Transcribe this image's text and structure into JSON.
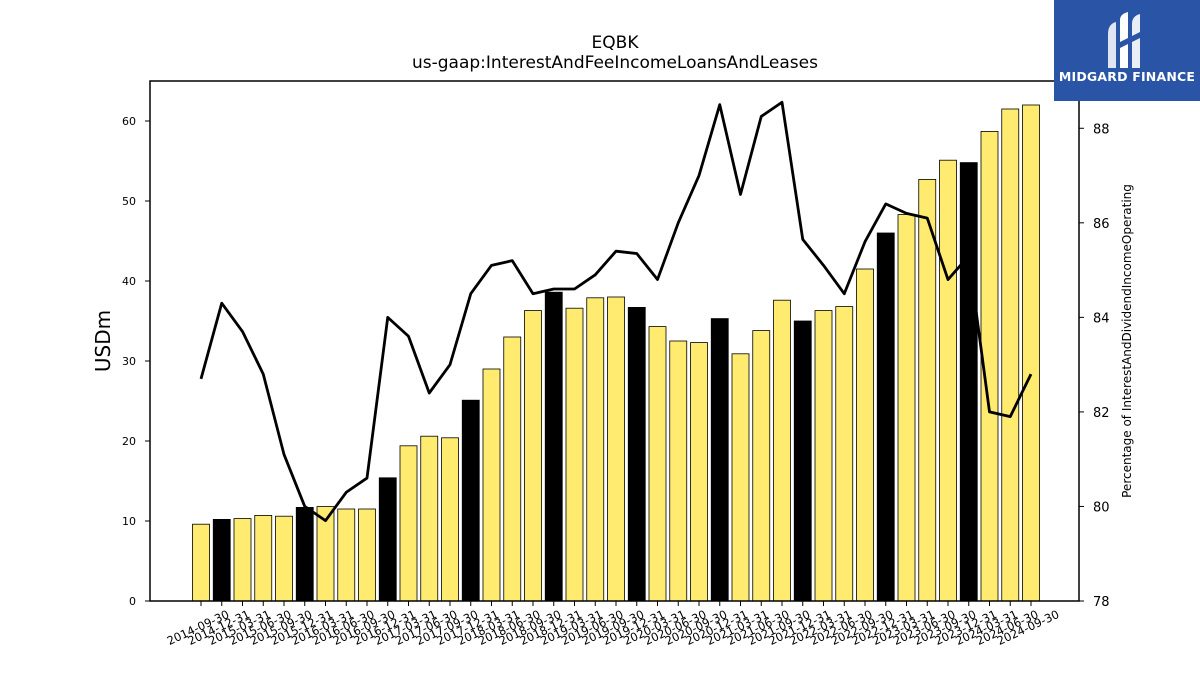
{
  "logo": {
    "text": "MIDGARD FINANCE",
    "background": "#2a55a6",
    "icon": "midgard-logo-icon"
  },
  "chart_data": {
    "type": "bar",
    "title": "EQBK",
    "subtitle": "us-gaap:InterestAndFeeIncomeLoansAndLeases",
    "ylabel": "USDm",
    "y2label": "Percentage of InterestAndDividendIncomeOperating",
    "ylim": [
      0,
      65
    ],
    "y2lim": [
      78,
      89
    ],
    "yticks": [
      0,
      10,
      20,
      30,
      40,
      50,
      60
    ],
    "y2ticks": [
      78,
      80,
      82,
      84,
      86,
      88
    ],
    "categories": [
      "2014-09-30",
      "2014-12-31",
      "2015-03-31",
      "2015-06-30",
      "2015-09-30",
      "2015-12-31",
      "2016-03-31",
      "2016-06-30",
      "2016-09-30",
      "2016-12-31",
      "2017-03-31",
      "2017-06-30",
      "2017-09-30",
      "2017-12-31",
      "2018-03-31",
      "2018-06-30",
      "2018-09-30",
      "2018-12-31",
      "2019-03-31",
      "2019-06-30",
      "2019-09-30",
      "2019-12-31",
      "2020-03-31",
      "2020-06-30",
      "2020-09-30",
      "2020-12-31",
      "2021-03-31",
      "2021-06-30",
      "2021-09-30",
      "2021-12-31",
      "2022-03-31",
      "2022-06-30",
      "2022-09-30",
      "2022-12-31",
      "2023-03-31",
      "2023-06-30",
      "2023-09-30",
      "2023-12-31",
      "2024-03-31",
      "2024-06-30",
      "2024-09-30"
    ],
    "series": [
      {
        "axis": "left",
        "kind": "bar",
        "values": [
          9.6,
          10.2,
          10.3,
          10.7,
          10.6,
          11.7,
          11.8,
          11.5,
          11.5,
          15.4,
          19.4,
          20.6,
          20.4,
          25.1,
          29.0,
          33.0,
          36.3,
          38.6,
          36.6,
          37.9,
          38.0,
          36.7,
          34.3,
          32.5,
          32.3,
          35.3,
          30.9,
          33.8,
          37.6,
          35.0,
          36.3,
          36.8,
          41.5,
          46.0,
          48.3,
          52.7,
          55.1,
          54.8,
          58.7,
          61.5,
          62.0
        ],
        "fill_default": "#ffeb70",
        "fill_highlight": "#000000",
        "highlight_categories": [
          "2014-12-31",
          "2015-12-31",
          "2016-12-31",
          "2017-12-31",
          "2018-12-31",
          "2019-12-31",
          "2020-12-31",
          "2021-12-31",
          "2022-12-31",
          "2023-12-31"
        ]
      },
      {
        "axis": "right",
        "kind": "line",
        "color": "#000000",
        "values": [
          82.7,
          84.3,
          83.7,
          82.8,
          81.1,
          80.0,
          79.7,
          80.3,
          80.6,
          84.0,
          83.6,
          82.4,
          83.0,
          84.5,
          85.1,
          85.2,
          84.5,
          84.6,
          84.6,
          84.9,
          85.4,
          85.35,
          84.8,
          86.0,
          87.0,
          88.5,
          86.6,
          88.25,
          88.55,
          85.65,
          85.1,
          84.5,
          85.6,
          86.4,
          86.2,
          86.1,
          84.8,
          85.3,
          82.0,
          81.9,
          82.8
        ]
      }
    ],
    "grid": false,
    "legend": "none"
  }
}
